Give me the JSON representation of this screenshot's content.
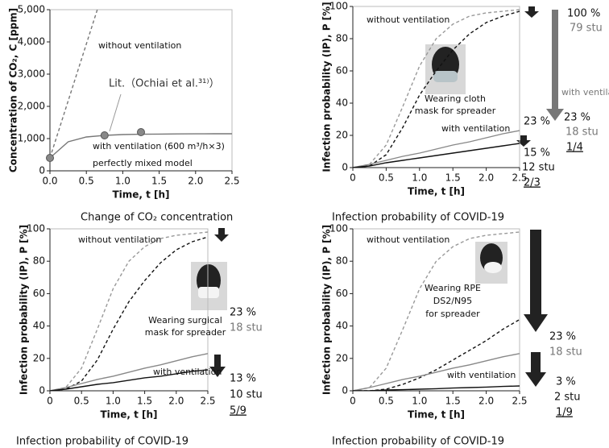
{
  "chart_data": [
    {
      "type": "line",
      "title": "Change of CO₂ concentration",
      "xlabel": "Time, t [h]",
      "ylabel": "Concentration of CO₂, C [ppm]",
      "xlim": [
        0,
        2.5
      ],
      "xticks": [
        {
          "value": 0,
          "label": "0.0"
        },
        0.5,
        {
          "value": 1,
          "label": "1.0"
        },
        1.5,
        {
          "value": 2,
          "label": "2.0"
        },
        2.5
      ],
      "ylim": [
        0,
        5000
      ],
      "yticks": [
        0,
        {
          "value": 1000,
          "label": "1,000"
        },
        {
          "value": 2000,
          "label": "2,000"
        },
        {
          "value": 3000,
          "label": "3,000"
        },
        {
          "value": 4000,
          "label": "4,000"
        },
        {
          "value": 5000,
          "label": "5,000"
        }
      ],
      "x": [
        0,
        0.25,
        0.5,
        0.75,
        1,
        1.25,
        1.5,
        1.75,
        2,
        2.25,
        2.5
      ],
      "series": [
        {
          "color": "#777777",
          "dash": true,
          "x": [
            0,
            0.65
          ],
          "values": [
            400,
            5000
          ]
        },
        {
          "color": "#777777",
          "dash": false,
          "values": [
            400,
            900,
            1050,
            1100,
            1125,
            1135,
            1140,
            1145,
            1148,
            1150,
            1150
          ]
        },
        {
          "color": "#888888",
          "marker": "circle",
          "x": [
            0,
            0.75,
            1.25
          ],
          "values": [
            400,
            1100,
            1200
          ]
        }
      ],
      "annotations": [
        "without ventilation",
        "Lit.（Ochiai et al.³¹⁾）",
        "with ventilation (600 m³/h×3)",
        "perfectly mixed model"
      ]
    },
    {
      "type": "line",
      "title": "Infection probability of COVID-19",
      "xlabel": "Time, t [h]",
      "ylabel": "Infection probability (IP), P [%]",
      "xlim": [
        0,
        2.5
      ],
      "xticks": [
        0,
        0.5,
        {
          "value": 1,
          "label": "1.0"
        },
        1.5,
        {
          "value": 2,
          "label": "2.0"
        },
        2.5
      ],
      "ylim": [
        0,
        100
      ],
      "yticks": [
        0,
        20,
        40,
        60,
        80,
        100
      ],
      "x": [
        0,
        0.25,
        0.5,
        0.75,
        1,
        1.25,
        1.5,
        1.75,
        2,
        2.25,
        2.5
      ],
      "series": [
        {
          "color": "#999999",
          "dash": true,
          "values": [
            0,
            2,
            14,
            38,
            63,
            80,
            89,
            94,
            96,
            97,
            98
          ]
        },
        {
          "color": "#111111",
          "dash": true,
          "values": [
            0,
            1,
            8,
            25,
            45,
            60,
            73,
            83,
            90,
            94,
            97
          ]
        },
        {
          "color": "#888888",
          "dash": false,
          "values": [
            0,
            2,
            4.5,
            7,
            9,
            11.5,
            14,
            16,
            18.5,
            21,
            23
          ]
        },
        {
          "color": "#111111",
          "dash": false,
          "values": [
            0,
            1,
            3,
            4.5,
            6,
            7.5,
            9,
            10.5,
            12,
            13.5,
            15
          ]
        }
      ],
      "annotations": [
        "without ventilation",
        "Wearing cloth",
        "mask for spreader",
        "with ventilation",
        "100 %",
        "79 stu",
        "with ventilation",
        "23 %",
        "18 stu",
        "1/4",
        "23 %",
        "15 %",
        "12 stu",
        "2/3"
      ]
    },
    {
      "type": "line",
      "title": "Infection probability of COVID-19",
      "xlabel": "Time, t [h]",
      "ylabel": "Infection probability (IP), P [%]",
      "xlim": [
        0,
        2.5
      ],
      "xticks": [
        0,
        0.5,
        {
          "value": 1,
          "label": "1.0"
        },
        1.5,
        {
          "value": 2,
          "label": "2.0"
        },
        2.5
      ],
      "ylim": [
        0,
        100
      ],
      "yticks": [
        0,
        20,
        40,
        60,
        80,
        100
      ],
      "x": [
        0,
        0.25,
        0.5,
        0.75,
        1,
        1.25,
        1.5,
        1.75,
        2,
        2.25,
        2.5
      ],
      "series": [
        {
          "color": "#999999",
          "dash": true,
          "values": [
            0,
            2,
            14,
            38,
            63,
            80,
            89,
            94,
            96,
            97,
            98
          ]
        },
        {
          "color": "#111111",
          "dash": true,
          "values": [
            0,
            1,
            6,
            19,
            38,
            55,
            68,
            79,
            87,
            92,
            95
          ]
        },
        {
          "color": "#888888",
          "dash": false,
          "values": [
            0,
            2,
            4.5,
            7,
            9,
            11.5,
            14,
            16,
            18.5,
            21,
            23
          ]
        },
        {
          "color": "#111111",
          "dash": false,
          "values": [
            0,
            1,
            2.5,
            4,
            5,
            6.5,
            8,
            9,
            10.5,
            12,
            13
          ]
        }
      ],
      "annotations": [
        "without ventilation",
        "Wearing surgical",
        "mask for spreader",
        "with ventilation",
        "23 %",
        "18 stu",
        "13 %",
        "10 stu",
        "5/9"
      ]
    },
    {
      "type": "line",
      "title": "Infection probability of COVID-19",
      "xlabel": "Time, t [h]",
      "ylabel": "Infection probability (IP), P [%]",
      "xlim": [
        0,
        2.5
      ],
      "xticks": [
        0,
        0.5,
        {
          "value": 1,
          "label": "1.0"
        },
        1.5,
        {
          "value": 2,
          "label": "2.0"
        },
        2.5
      ],
      "ylim": [
        0,
        100
      ],
      "yticks": [
        0,
        20,
        40,
        60,
        80,
        100
      ],
      "x": [
        0,
        0.25,
        0.5,
        0.75,
        1,
        1.25,
        1.5,
        1.75,
        2,
        2.25,
        2.5
      ],
      "series": [
        {
          "color": "#999999",
          "dash": true,
          "values": [
            0,
            2,
            14,
            38,
            63,
            80,
            89,
            94,
            96,
            97,
            98
          ]
        },
        {
          "color": "#111111",
          "dash": true,
          "values": [
            0,
            0,
            1,
            4,
            8,
            13,
            19,
            25,
            31,
            38,
            44
          ]
        },
        {
          "color": "#888888",
          "dash": false,
          "values": [
            0,
            2,
            4.5,
            7,
            9,
            11.5,
            14,
            16,
            18.5,
            21,
            23
          ]
        },
        {
          "color": "#111111",
          "dash": false,
          "values": [
            0,
            0,
            0.5,
            0.7,
            1,
            1.3,
            1.7,
            2,
            2.3,
            2.7,
            3
          ]
        }
      ],
      "annotations": [
        "without ventilation",
        "Wearing RPE",
        "DS2/N95",
        "for spreader",
        "with ventilation",
        "23 %",
        "18 stu",
        "3 %",
        "2 stu",
        "1/9"
      ]
    }
  ]
}
